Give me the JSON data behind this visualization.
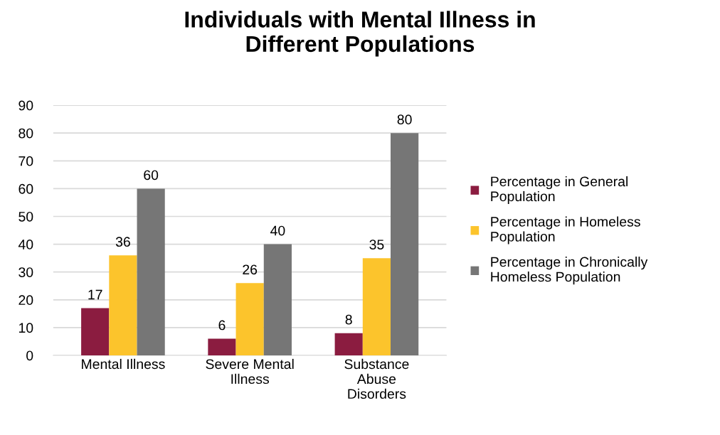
{
  "chart_data": {
    "type": "bar",
    "title": "Individuals with Mental Illness in\nDifferent Populations",
    "categories": [
      "Mental Illness",
      "Severe Mental\nIllness",
      "Substance\nAbuse\nDisorders"
    ],
    "series": [
      {
        "name": "Percentage in General\nPopulation",
        "color": "#8b1c40",
        "values": [
          17,
          6,
          8
        ]
      },
      {
        "name": "Percentage in Homeless\nPopulation",
        "color": "#fcc42c",
        "values": [
          36,
          26,
          35
        ]
      },
      {
        "name": "Percentage in Chronically\nHomeless Population",
        "color": "#767676",
        "values": [
          60,
          40,
          80
        ]
      }
    ],
    "ylim": [
      0,
      90
    ],
    "yticks": [
      0,
      10,
      20,
      30,
      40,
      50,
      60,
      70,
      80,
      90
    ],
    "grid": "y",
    "legend": "right",
    "data_labels": true
  }
}
